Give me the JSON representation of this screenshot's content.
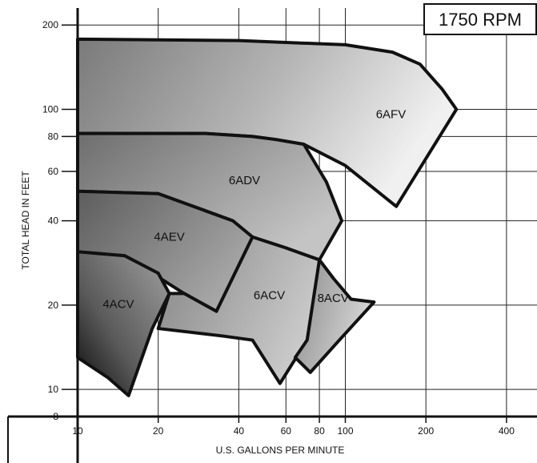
{
  "chart_data": {
    "type": "area",
    "title": "1750 RPM",
    "xlabel": "U.S. GALLONS PER MINUTE",
    "ylabel": "TOTAL HEAD IN FEET",
    "x_scale": "log",
    "y_scale": "log",
    "xlim": [
      10,
      520
    ],
    "ylim": [
      8,
      230
    ],
    "x_ticks": [
      10,
      20,
      40,
      60,
      80,
      100,
      200,
      400
    ],
    "x_tick_labels": [
      "10",
      "20",
      "40",
      "60",
      "80",
      "100",
      "200",
      "400"
    ],
    "y_ticks": [
      8,
      10,
      20,
      40,
      60,
      80,
      100,
      200
    ],
    "y_tick_labels": [
      "8",
      "10",
      "20",
      "40",
      "60",
      "80",
      "100",
      "200"
    ],
    "grid": true,
    "regions": [
      {
        "name": "6AFV",
        "label_at": [
          148,
          93
        ],
        "outline": [
          [
            10,
            178
          ],
          [
            40,
            176
          ],
          [
            100,
            170
          ],
          [
            150,
            160
          ],
          [
            190,
            145
          ],
          [
            230,
            118
          ],
          [
            260,
            100
          ],
          [
            155,
            45
          ],
          [
            100,
            63
          ],
          [
            70,
            75
          ],
          [
            55,
            78
          ],
          [
            45,
            80
          ],
          [
            30,
            82
          ],
          [
            10,
            82
          ]
        ]
      },
      {
        "name": "6ADV",
        "label_at": [
          42,
          54
        ],
        "outline": [
          [
            10,
            82
          ],
          [
            30,
            82
          ],
          [
            45,
            80
          ],
          [
            55,
            78
          ],
          [
            70,
            75
          ],
          [
            85,
            55
          ],
          [
            97,
            40
          ],
          [
            80,
            29
          ],
          [
            60,
            32
          ],
          [
            45,
            35
          ],
          [
            38,
            40
          ],
          [
            20,
            50
          ],
          [
            10,
            51
          ]
        ]
      },
      {
        "name": "4AEV",
        "label_at": [
          22,
          34
        ],
        "outline": [
          [
            10,
            51
          ],
          [
            20,
            50
          ],
          [
            38,
            40
          ],
          [
            45,
            35
          ],
          [
            33,
            19
          ],
          [
            25,
            22
          ],
          [
            15,
            30
          ],
          [
            10,
            31
          ]
        ]
      },
      {
        "name": "6ACV",
        "label_at": [
          52,
          21
        ],
        "outline": [
          [
            45,
            35
          ],
          [
            60,
            32
          ],
          [
            80,
            29
          ],
          [
            90,
            25
          ],
          [
            72,
            15
          ],
          [
            57,
            10.5
          ],
          [
            45,
            15
          ],
          [
            35,
            15.5
          ],
          [
            20,
            16.5
          ],
          [
            22,
            22
          ],
          [
            25,
            22
          ],
          [
            33,
            19
          ]
        ]
      },
      {
        "name": "8ACV",
        "label_at": [
          90,
          20.5
        ],
        "outline": [
          [
            80,
            29
          ],
          [
            90,
            25
          ],
          [
            105,
            21
          ],
          [
            128,
            20.5
          ],
          [
            95,
            15
          ],
          [
            74,
            11.5
          ],
          [
            65,
            13
          ],
          [
            72,
            15
          ]
        ]
      },
      {
        "name": "4ACV",
        "label_at": [
          14.2,
          19.5
        ],
        "outline": [
          [
            10,
            31
          ],
          [
            15,
            30
          ],
          [
            20,
            26
          ],
          [
            22,
            22
          ],
          [
            19,
            16.5
          ],
          [
            15.5,
            9.5
          ],
          [
            13,
            11
          ],
          [
            10,
            13
          ]
        ]
      }
    ]
  }
}
